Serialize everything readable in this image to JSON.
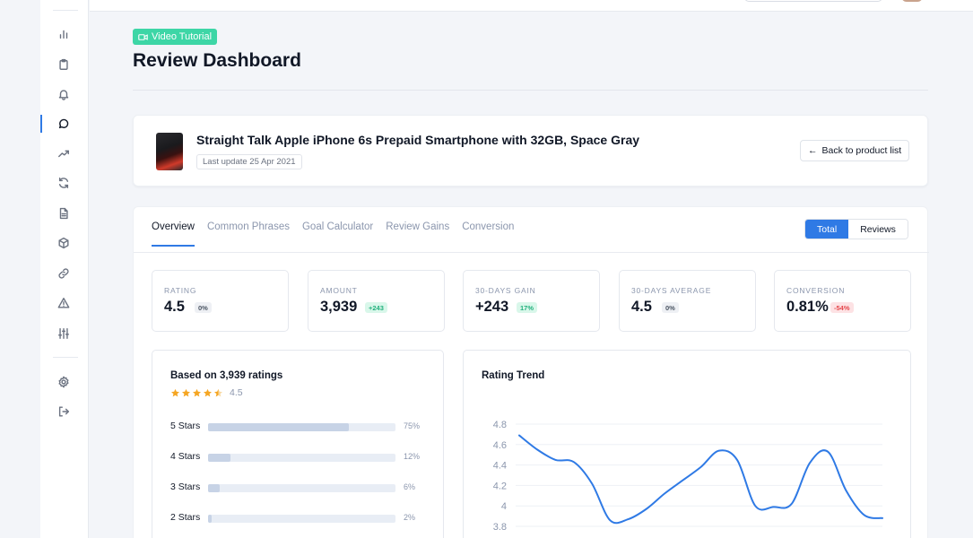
{
  "app": {
    "video_badge": "Video Tutorial",
    "page_title": "Review Dashboard"
  },
  "sidebar": {
    "items": [
      {
        "icon": "bar-chart-icon"
      },
      {
        "icon": "clipboard-icon"
      },
      {
        "icon": "bell-icon"
      },
      {
        "icon": "message-circle-icon",
        "active": true
      },
      {
        "icon": "trending-up-icon"
      },
      {
        "icon": "refresh-icon"
      },
      {
        "icon": "file-text-icon"
      },
      {
        "icon": "box-icon"
      },
      {
        "icon": "link-icon"
      },
      {
        "icon": "alert-triangle-icon"
      },
      {
        "icon": "sliders-icon"
      }
    ],
    "bottom": [
      {
        "icon": "settings-icon"
      },
      {
        "icon": "logout-icon"
      }
    ]
  },
  "product": {
    "title": "Straight Talk Apple iPhone 6s Prepaid Smartphone with 32GB, Space Gray",
    "last_update": "Last update 25 Apr 2021",
    "back_label": "Back to product list"
  },
  "tabs": [
    {
      "label": "Overview",
      "active": true
    },
    {
      "label": "Common Phrases"
    },
    {
      "label": "Goal Calculator"
    },
    {
      "label": "Review Gains"
    },
    {
      "label": "Conversion"
    }
  ],
  "toggle": {
    "total": "Total",
    "reviews": "Reviews",
    "active": "total"
  },
  "stats": [
    {
      "label": "RATING",
      "value": "4.5",
      "badge": "0%",
      "badge_type": "gray"
    },
    {
      "label": "AMOUNT",
      "value": "3,939",
      "badge": "+243",
      "badge_type": "green"
    },
    {
      "label": "30-DAYS GAIN",
      "value": "+243",
      "badge": "17%",
      "badge_type": "green"
    },
    {
      "label": "30-DAYS AVERAGE",
      "value": "4.5",
      "badge": "0%",
      "badge_type": "gray"
    },
    {
      "label": "CONVERSION",
      "value": "0.81%",
      "badge": "-54%",
      "badge_type": "red"
    }
  ],
  "ratings": {
    "title": "Based on 3,939 ratings",
    "stars_value": "4.5",
    "stars_fraction": 0.9,
    "rows": [
      {
        "label": "5 Stars",
        "pct": "75%",
        "fraction": 0.75
      },
      {
        "label": "4 Stars",
        "pct": "12%",
        "fraction": 0.12
      },
      {
        "label": "3 Stars",
        "pct": "6%",
        "fraction": 0.06
      },
      {
        "label": "2 Stars",
        "pct": "2%",
        "fraction": 0.02
      }
    ]
  },
  "colors": {
    "accent": "#2f7ae5",
    "star": "#f5a623",
    "success": "#22b07d",
    "danger": "#e5484d"
  },
  "chart_data": {
    "type": "line",
    "title": "Rating Trend",
    "xlabel": "",
    "ylabel": "",
    "ylim": [
      3.8,
      4.8
    ],
    "yticks": [
      "4.8",
      "4.6",
      "4.4",
      "4.2",
      "4",
      "3.8"
    ],
    "grid": true,
    "x": [
      0,
      1,
      2,
      3,
      4,
      5,
      6,
      7,
      8,
      9,
      10,
      11,
      12,
      13,
      14,
      15,
      16,
      17,
      18,
      19,
      20
    ],
    "series": [
      {
        "values": [
          4.69,
          4.55,
          4.45,
          4.43,
          4.22,
          3.86,
          3.87,
          3.97,
          4.12,
          4.25,
          4.38,
          4.54,
          4.45,
          4.0,
          3.99,
          4.02,
          4.42,
          4.53,
          4.15,
          3.91,
          3.88
        ]
      }
    ]
  }
}
